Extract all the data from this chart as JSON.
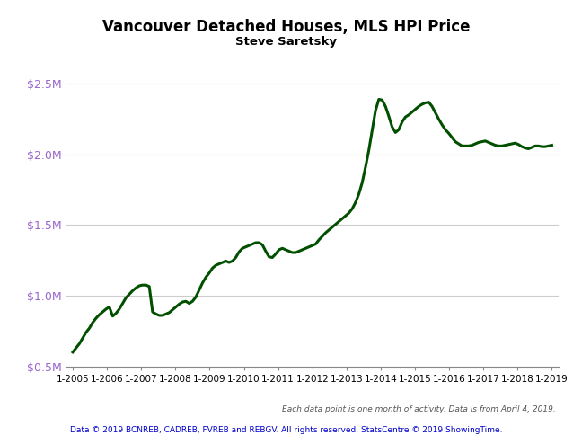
{
  "title": "Vancouver Detached Houses, MLS HPI Price",
  "subtitle": "Steve Saretsky",
  "line_color": "#005000",
  "line_width": 2.2,
  "background_color": "#ffffff",
  "grid_color": "#cccccc",
  "ytick_color": "#9966CC",
  "footer1": "Each data point is one month of activity. Data is from April 4, 2019.",
  "footer2": "Data © 2019 BCNREB, CADREB, FVREB and REBGV. All rights reserved. StatsCentre © 2019 ShowingTime.",
  "ylim": [
    500000,
    2700000
  ],
  "yticks": [
    500000,
    1000000,
    1500000,
    2000000,
    2500000
  ],
  "ytick_labels": [
    "$0.5M",
    "$1.0M",
    "$1.5M",
    "$2.0M",
    "$2.5M"
  ],
  "xtick_labels": [
    "1-2005",
    "1-2006",
    "1-2007",
    "1-2008",
    "1-2009",
    "1-2010",
    "1-2011",
    "1-2012",
    "1-2013",
    "1-2014",
    "1-2015",
    "1-2016",
    "1-2017",
    "1-2018",
    "1-2019"
  ],
  "values": [
    600000,
    630000,
    660000,
    700000,
    740000,
    770000,
    810000,
    840000,
    865000,
    885000,
    905000,
    920000,
    855000,
    875000,
    905000,
    945000,
    985000,
    1010000,
    1035000,
    1055000,
    1070000,
    1075000,
    1075000,
    1065000,
    885000,
    870000,
    860000,
    860000,
    870000,
    880000,
    900000,
    920000,
    940000,
    955000,
    960000,
    945000,
    960000,
    990000,
    1040000,
    1090000,
    1130000,
    1160000,
    1195000,
    1215000,
    1225000,
    1235000,
    1245000,
    1235000,
    1245000,
    1270000,
    1310000,
    1335000,
    1345000,
    1355000,
    1365000,
    1375000,
    1375000,
    1360000,
    1315000,
    1275000,
    1270000,
    1295000,
    1325000,
    1335000,
    1325000,
    1315000,
    1305000,
    1305000,
    1315000,
    1325000,
    1335000,
    1345000,
    1355000,
    1365000,
    1395000,
    1420000,
    1445000,
    1465000,
    1485000,
    1505000,
    1525000,
    1545000,
    1565000,
    1585000,
    1615000,
    1660000,
    1720000,
    1800000,
    1910000,
    2030000,
    2170000,
    2310000,
    2390000,
    2385000,
    2340000,
    2270000,
    2195000,
    2155000,
    2175000,
    2230000,
    2265000,
    2280000,
    2300000,
    2320000,
    2340000,
    2355000,
    2365000,
    2370000,
    2340000,
    2295000,
    2250000,
    2210000,
    2175000,
    2150000,
    2120000,
    2090000,
    2075000,
    2060000,
    2060000,
    2060000,
    2065000,
    2075000,
    2085000,
    2090000,
    2095000,
    2085000,
    2075000,
    2065000,
    2060000,
    2060000,
    2065000,
    2070000,
    2075000,
    2080000,
    2070000,
    2055000,
    2045000,
    2040000,
    2050000,
    2060000,
    2060000,
    2055000,
    2055000,
    2060000,
    2065000
  ]
}
